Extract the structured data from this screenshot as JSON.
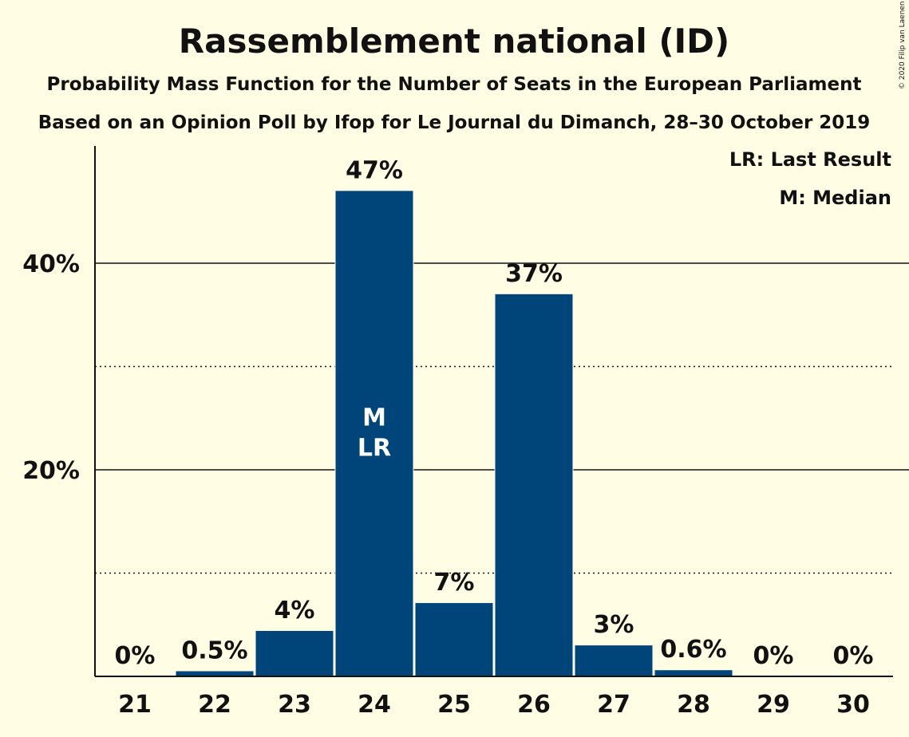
{
  "chart_data": {
    "type": "bar",
    "title": "Rassemblement national (ID)",
    "subtitle": "Probability Mass Function for the Number of Seats in the European Parliament",
    "subtitle2": "Based on an Opinion Poll by Ifop for Le Journal du Dimanch, 28–30 October 2019",
    "copyright": "© 2020 Filip van Laenen",
    "categories": [
      "21",
      "22",
      "23",
      "24",
      "25",
      "26",
      "27",
      "28",
      "29",
      "30"
    ],
    "values": [
      0,
      0.5,
      4.4,
      47,
      7.1,
      37,
      3,
      0.6,
      0,
      0
    ],
    "value_labels": [
      "0%",
      "0.5%",
      "4%",
      "47%",
      "7%",
      "37%",
      "3%",
      "0.6%",
      "0%",
      "0%"
    ],
    "ylim": [
      0,
      51
    ],
    "yticks": [
      {
        "value": 20,
        "label": "20%"
      },
      {
        "value": 40,
        "label": "40%"
      }
    ],
    "minor_gridlines": [
      10,
      30
    ],
    "bar_color": "#00457a",
    "background": "#fffde4",
    "markers": [
      {
        "category": "24",
        "lines": [
          "M",
          "LR"
        ]
      }
    ],
    "legend": {
      "position": "top-right",
      "items": [
        "LR: Last Result",
        "M: Median"
      ]
    }
  }
}
